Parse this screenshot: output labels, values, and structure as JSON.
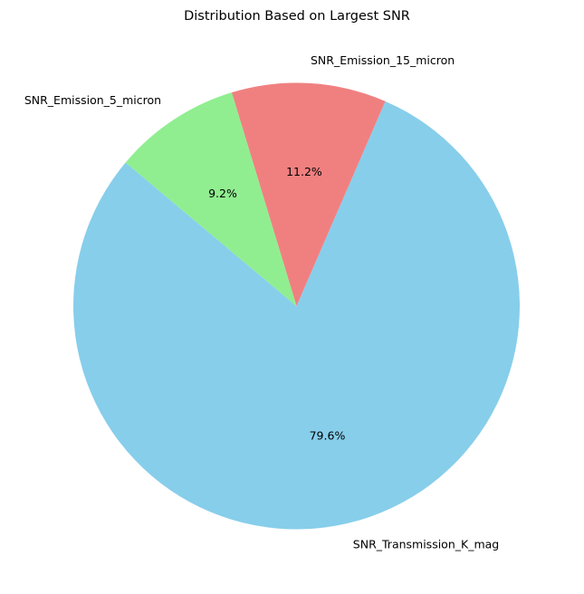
{
  "chart_data": {
    "type": "pie",
    "title": "Distribution Based on Largest SNR",
    "categories": [
      "SNR_Transmission_K_mag",
      "SNR_Emission_15_micron",
      "SNR_Emission_5_micron"
    ],
    "values": [
      79.6,
      11.2,
      9.2
    ],
    "percent_labels": [
      "79.6%",
      "11.2%",
      "9.2%"
    ],
    "colors": [
      "#87ceeb",
      "#f08080",
      "#90ee90"
    ],
    "start_angle_deg": 140,
    "direction": "counterclockwise"
  }
}
